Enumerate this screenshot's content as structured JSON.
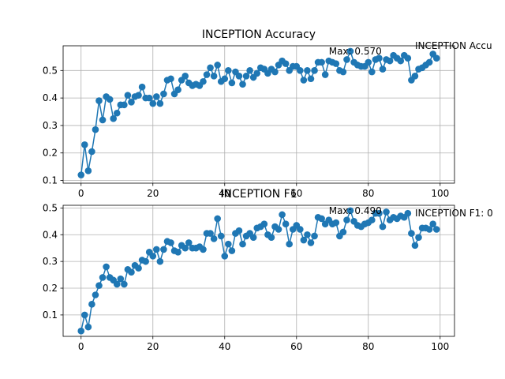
{
  "chart_data": [
    {
      "type": "line",
      "title": "INCEPTION Accuracy",
      "xlabel": "",
      "ylabel": "",
      "xlim": [
        -5,
        104
      ],
      "ylim": [
        0.09,
        0.59
      ],
      "xticks": [
        0,
        20,
        40,
        60,
        80,
        100
      ],
      "xtick_labels": [
        "0",
        "20",
        "40",
        "60",
        "80",
        "100"
      ],
      "yticks": [
        0.1,
        0.2,
        0.3,
        0.4,
        0.5
      ],
      "ytick_labels": [
        "0.1",
        "0.2",
        "0.3",
        "0.4",
        "0.5"
      ],
      "grid": true,
      "color": "#1f77b4",
      "annotations": [
        {
          "text": "Max: 0.570",
          "x": 69,
          "y": 0.57
        },
        {
          "text": "INCEPTION Accu",
          "x": 93,
          "y": 0.59
        }
      ],
      "series": [
        {
          "x": [
            0,
            1,
            2,
            3,
            4,
            5,
            6,
            7,
            8,
            9,
            10,
            11,
            12,
            13,
            14,
            15,
            16,
            17,
            18,
            19,
            20,
            21,
            22,
            23,
            24,
            25,
            26,
            27,
            28,
            29,
            30,
            31,
            32,
            33,
            34,
            35,
            36,
            37,
            38,
            39,
            40,
            41,
            42,
            43,
            44,
            45,
            46,
            47,
            48,
            49,
            50,
            51,
            52,
            53,
            54,
            55,
            56,
            57,
            58,
            59,
            60,
            61,
            62,
            63,
            64,
            65,
            66,
            67,
            68,
            69,
            70,
            71,
            72,
            73,
            74,
            75,
            76,
            77,
            78,
            79,
            80,
            81,
            82,
            83,
            84,
            85,
            86,
            87,
            88,
            89,
            90,
            91,
            92,
            93,
            94,
            95,
            96,
            97,
            98,
            99
          ],
          "values": [
            0.12,
            0.23,
            0.135,
            0.205,
            0.285,
            0.39,
            0.32,
            0.405,
            0.395,
            0.325,
            0.345,
            0.375,
            0.375,
            0.41,
            0.385,
            0.405,
            0.41,
            0.44,
            0.4,
            0.4,
            0.38,
            0.405,
            0.38,
            0.415,
            0.465,
            0.47,
            0.415,
            0.43,
            0.465,
            0.48,
            0.455,
            0.445,
            0.45,
            0.445,
            0.46,
            0.485,
            0.51,
            0.48,
            0.52,
            0.46,
            0.47,
            0.5,
            0.455,
            0.495,
            0.48,
            0.45,
            0.48,
            0.5,
            0.475,
            0.49,
            0.51,
            0.505,
            0.49,
            0.505,
            0.495,
            0.52,
            0.535,
            0.525,
            0.5,
            0.515,
            0.515,
            0.5,
            0.465,
            0.5,
            0.47,
            0.5,
            0.53,
            0.53,
            0.485,
            0.535,
            0.53,
            0.525,
            0.5,
            0.495,
            0.54,
            0.57,
            0.53,
            0.52,
            0.515,
            0.515,
            0.53,
            0.495,
            0.54,
            0.545,
            0.505,
            0.54,
            0.535,
            0.555,
            0.545,
            0.535,
            0.555,
            0.545,
            0.465,
            0.48,
            0.505,
            0.51,
            0.52,
            0.53,
            0.56,
            0.545
          ]
        }
      ]
    },
    {
      "type": "line",
      "title": "INCEPTION F1",
      "xlabel": "",
      "ylabel": "",
      "xlim": [
        -5,
        104
      ],
      "ylim": [
        0.02,
        0.51
      ],
      "xticks": [
        0,
        20,
        40,
        60,
        80,
        100
      ],
      "xtick_labels": [
        "0",
        "20",
        "40",
        "60",
        "80",
        "100"
      ],
      "yticks": [
        0.1,
        0.2,
        0.3,
        0.4,
        0.5
      ],
      "ytick_labels": [
        "0.1",
        "0.2",
        "0.3",
        "0.4",
        "0.5"
      ],
      "grid": true,
      "color": "#1f77b4",
      "annotations": [
        {
          "text": "Max: 0.490",
          "x": 69,
          "y": 0.49
        },
        {
          "text": "INCEPTION F1: 0",
          "x": 93,
          "y": 0.48
        }
      ],
      "series": [
        {
          "x": [
            0,
            1,
            2,
            3,
            4,
            5,
            6,
            7,
            8,
            9,
            10,
            11,
            12,
            13,
            14,
            15,
            16,
            17,
            18,
            19,
            20,
            21,
            22,
            23,
            24,
            25,
            26,
            27,
            28,
            29,
            30,
            31,
            32,
            33,
            34,
            35,
            36,
            37,
            38,
            39,
            40,
            41,
            42,
            43,
            44,
            45,
            46,
            47,
            48,
            49,
            50,
            51,
            52,
            53,
            54,
            55,
            56,
            57,
            58,
            59,
            60,
            61,
            62,
            63,
            64,
            65,
            66,
            67,
            68,
            69,
            70,
            71,
            72,
            73,
            74,
            75,
            76,
            77,
            78,
            79,
            80,
            81,
            82,
            83,
            84,
            85,
            86,
            87,
            88,
            89,
            90,
            91,
            92,
            93,
            94,
            95,
            96,
            97,
            98,
            99
          ],
          "values": [
            0.04,
            0.1,
            0.055,
            0.14,
            0.175,
            0.21,
            0.24,
            0.28,
            0.24,
            0.23,
            0.215,
            0.235,
            0.215,
            0.27,
            0.26,
            0.285,
            0.275,
            0.305,
            0.3,
            0.335,
            0.32,
            0.345,
            0.3,
            0.345,
            0.375,
            0.37,
            0.34,
            0.335,
            0.36,
            0.35,
            0.37,
            0.35,
            0.35,
            0.355,
            0.345,
            0.405,
            0.405,
            0.385,
            0.46,
            0.395,
            0.32,
            0.365,
            0.34,
            0.405,
            0.415,
            0.365,
            0.395,
            0.405,
            0.39,
            0.425,
            0.43,
            0.44,
            0.4,
            0.39,
            0.43,
            0.42,
            0.475,
            0.44,
            0.365,
            0.42,
            0.435,
            0.42,
            0.38,
            0.4,
            0.37,
            0.395,
            0.465,
            0.46,
            0.44,
            0.455,
            0.44,
            0.445,
            0.395,
            0.41,
            0.455,
            0.49,
            0.45,
            0.435,
            0.43,
            0.44,
            0.445,
            0.455,
            0.48,
            0.48,
            0.43,
            0.485,
            0.455,
            0.465,
            0.46,
            0.47,
            0.465,
            0.48,
            0.405,
            0.36,
            0.39,
            0.425,
            0.425,
            0.42,
            0.44,
            0.42
          ]
        }
      ]
    }
  ]
}
